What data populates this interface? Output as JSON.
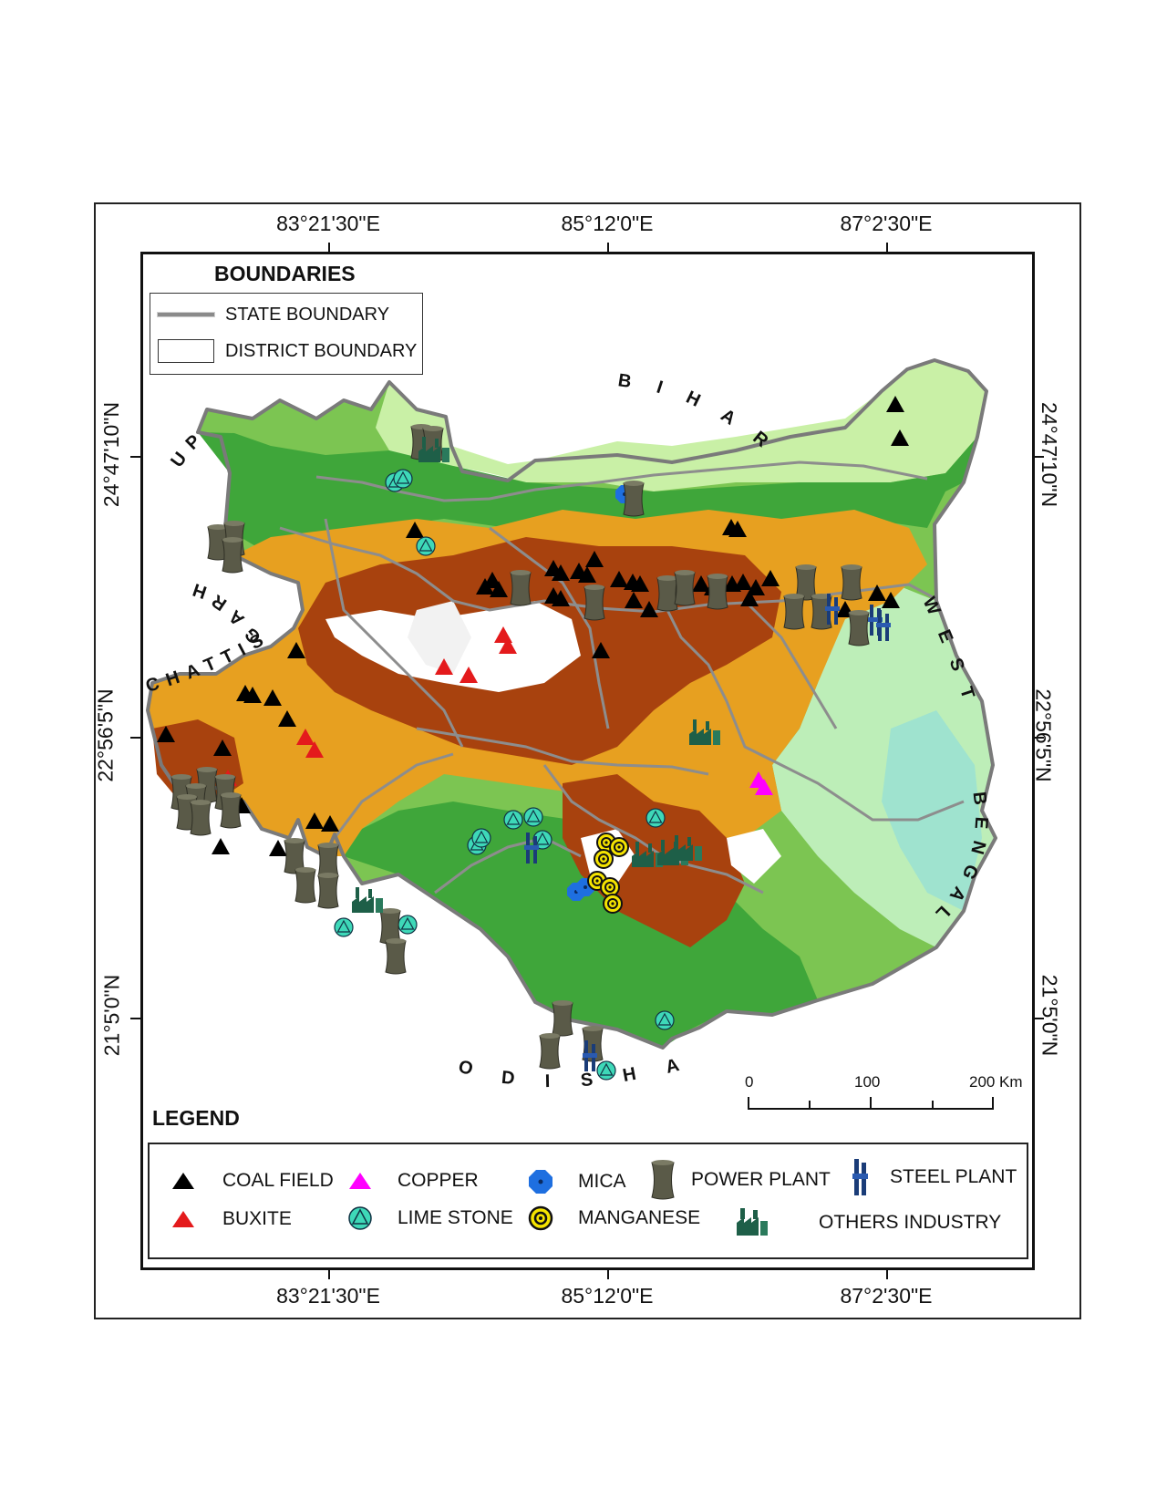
{
  "coords": {
    "top": [
      "83°21'30\"E",
      "85°12'0\"E",
      "87°2'30\"E"
    ],
    "bottom": [
      "83°21'30\"E",
      "85°12'0\"E",
      "87°2'30\"E"
    ],
    "left": [
      "24°47'10\"N",
      "22°56'5\"N",
      "21°5'0\"N"
    ],
    "right": [
      "24°47'10\"N",
      "22°56'5\"N",
      "21°5'0\"N"
    ]
  },
  "boundaries": {
    "title": "BOUNDARIES",
    "state_label": "STATE BOUNDARY",
    "district_label": "DISTRICT BOUNDARY"
  },
  "neighbors": {
    "up": "UP",
    "bihar": "BIHAR",
    "chhattisgarh_a": "GARH",
    "chhattisgarh_b": "CHATTIS",
    "west_bengal_a": "WEST",
    "west_bengal_b": "BENGAL",
    "odisha": "ODISHA"
  },
  "scale": {
    "zero": "0",
    "mid": "100",
    "max": "200",
    "unit": "Km"
  },
  "legend": {
    "title": "LEGEND",
    "items": [
      {
        "label": "COAL FIELD",
        "icon": "black-triangle-icon",
        "color": "#000000"
      },
      {
        "label": "BUXITE",
        "icon": "red-triangle-icon",
        "color": "#e41a1c"
      },
      {
        "label": "COPPER",
        "icon": "magenta-triangle-icon",
        "color": "#ff00ff"
      },
      {
        "label": "LIME STONE",
        "icon": "cyan-circle-triangle-icon",
        "color": "#3ed8b8"
      },
      {
        "label": "MICA",
        "icon": "blue-octagon-icon",
        "color": "#1e6fe0"
      },
      {
        "label": "MANGANESE",
        "icon": "yellow-ring-icon",
        "color": "#f5e400"
      },
      {
        "label": "POWER PLANT",
        "icon": "cooling-tower-icon",
        "color": "#5a5a48"
      },
      {
        "label": "STEEL PLANT",
        "icon": "blast-furnace-icon",
        "color": "#1a3c78"
      },
      {
        "label": "OTHERS INDUSTRY",
        "icon": "factory-icon",
        "color": "#1e5f48"
      }
    ]
  },
  "elevation_colors": {
    "lowland": "#c9f0a6",
    "plain": "#3fa63a",
    "upland": "#e7a020",
    "hill": "#a8420e",
    "plateau": "#ffffff",
    "valley": "#9fe3cf"
  }
}
